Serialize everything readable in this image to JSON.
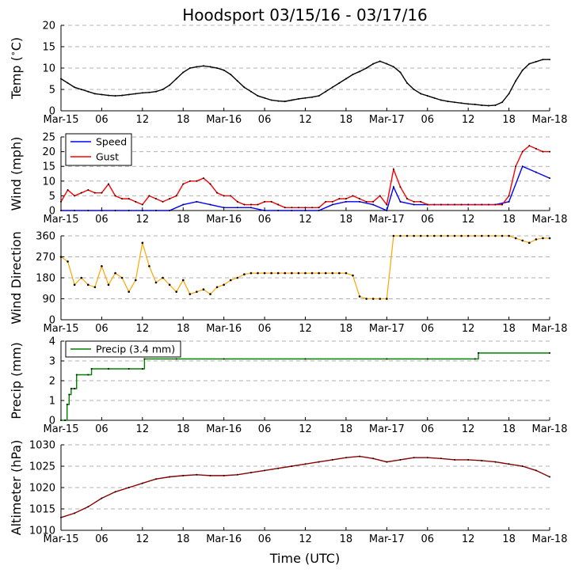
{
  "title": "Hoodsport 03/15/16 - 03/17/16",
  "xlabel": "Time (UTC)",
  "x_ticks": [
    "Mar-15",
    "06",
    "12",
    "18",
    "Mar-16",
    "06",
    "12",
    "18",
    "Mar-17",
    "06",
    "12",
    "18",
    "Mar-18"
  ],
  "colors": {
    "temp": "#000000",
    "speed": "#0000ff",
    "gust": "#ff0000",
    "direction": "#ffa500",
    "precip": "#008000",
    "altimeter": "#8b0000",
    "grid": "#b0b0b0"
  },
  "chart_data": [
    {
      "type": "line",
      "ylabel": "Temp ($^\\circ$C)",
      "ylim": [
        0,
        20
      ],
      "yticks": [
        "0",
        "5",
        "10",
        "15",
        "20"
      ],
      "grid": "horizontal dashed",
      "series": [
        {
          "key": "temp",
          "color": "#000000",
          "x": [
            0,
            1,
            2,
            3,
            4,
            5,
            6,
            7,
            8,
            9,
            10,
            11,
            12,
            13,
            14,
            15,
            16,
            17,
            18,
            19,
            20,
            21,
            22,
            23,
            24,
            25,
            26,
            27,
            28,
            29,
            30,
            31,
            32,
            33,
            34,
            35,
            36,
            37,
            38,
            39,
            40,
            41,
            42,
            43,
            44,
            45,
            46,
            47,
            48,
            49,
            50,
            51,
            52,
            53,
            54,
            55,
            56,
            57,
            58,
            59,
            60,
            61,
            62,
            63,
            64,
            65,
            66,
            67,
            68,
            69,
            70,
            71,
            72
          ],
          "y": [
            7.5,
            6.5,
            5.5,
            5,
            4.5,
            4,
            3.8,
            3.6,
            3.5,
            3.6,
            3.8,
            4,
            4.2,
            4.3,
            4.5,
            5,
            6,
            7.5,
            9,
            10,
            10.3,
            10.5,
            10.3,
            10,
            9.5,
            8.5,
            7,
            5.5,
            4.5,
            3.5,
            3,
            2.5,
            2.3,
            2.2,
            2.5,
            2.8,
            3,
            3.2,
            3.5,
            4.5,
            5.5,
            6.5,
            7.5,
            8.5,
            9.2,
            10,
            11,
            11.6,
            11,
            10.3,
            9,
            6.5,
            5,
            4,
            3.5,
            3,
            2.5,
            2.2,
            2,
            1.8,
            1.6,
            1.5,
            1.3,
            1.2,
            1.3,
            2,
            4,
            7,
            9.5,
            11,
            11.5,
            12,
            12
          ]
        }
      ]
    },
    {
      "type": "line",
      "ylabel": "Wind (mph)",
      "ylim": [
        0,
        25
      ],
      "yticks": [
        "0",
        "5",
        "10",
        "15",
        "20",
        "25"
      ],
      "legend": [
        "Speed",
        "Gust"
      ],
      "legend_position": "upper-left",
      "grid": "horizontal dashed",
      "series": [
        {
          "name": "Speed",
          "key": "speed",
          "color": "#0000ff",
          "x": [
            0,
            2,
            4,
            6,
            8,
            10,
            12,
            14,
            16,
            18,
            20,
            22,
            24,
            26,
            28,
            30,
            32,
            34,
            36,
            38,
            40,
            42,
            44,
            46,
            48,
            49,
            50,
            52,
            54,
            56,
            58,
            60,
            62,
            64,
            66,
            68,
            70,
            72
          ],
          "y": [
            0,
            0,
            0,
            0,
            0,
            0,
            0,
            0,
            0,
            2,
            3,
            2,
            1,
            1,
            1,
            0,
            0,
            0,
            0,
            0,
            2,
            3,
            3,
            2,
            0,
            8,
            3,
            2,
            2,
            2,
            2,
            2,
            2,
            2,
            3,
            15,
            13,
            11
          ]
        },
        {
          "name": "Gust",
          "key": "gust",
          "color": "#ff0000",
          "x": [
            0,
            1,
            2,
            3,
            4,
            5,
            6,
            7,
            8,
            9,
            10,
            11,
            12,
            13,
            14,
            15,
            16,
            17,
            18,
            19,
            20,
            21,
            22,
            23,
            24,
            25,
            26,
            27,
            28,
            29,
            30,
            31,
            32,
            33,
            34,
            35,
            36,
            37,
            38,
            39,
            40,
            41,
            42,
            43,
            44,
            45,
            46,
            47,
            48,
            49,
            50,
            51,
            52,
            53,
            54,
            55,
            56,
            57,
            58,
            59,
            60,
            61,
            62,
            63,
            64,
            65,
            66,
            67,
            68,
            69,
            70,
            71,
            72
          ],
          "y": [
            3,
            7,
            5,
            6,
            7,
            6,
            6,
            9,
            5,
            4,
            4,
            3,
            2,
            5,
            4,
            3,
            4,
            5,
            9,
            10,
            10,
            11,
            9,
            6,
            5,
            5,
            3,
            2,
            2,
            2,
            3,
            3,
            2,
            1,
            1,
            1,
            1,
            1,
            1,
            3,
            3,
            4,
            4,
            5,
            4,
            3,
            3,
            5,
            2,
            14,
            8,
            4,
            3,
            3,
            2,
            2,
            2,
            2,
            2,
            2,
            2,
            2,
            2,
            2,
            2,
            2,
            5,
            15,
            20,
            22,
            21,
            20,
            20
          ]
        }
      ]
    },
    {
      "type": "scatter",
      "ylabel": "Wind Direction",
      "ylim": [
        0,
        360
      ],
      "yticks": [
        "0",
        "90",
        "180",
        "270",
        "360"
      ],
      "grid": "horizontal dashed",
      "series": [
        {
          "key": "direction",
          "color": "#ffa500",
          "x": [
            0,
            1,
            2,
            3,
            4,
            5,
            6,
            7,
            8,
            9,
            10,
            11,
            12,
            13,
            14,
            15,
            16,
            17,
            18,
            19,
            20,
            21,
            22,
            23,
            24,
            25,
            26,
            27,
            28,
            29,
            30,
            31,
            32,
            33,
            34,
            35,
            36,
            37,
            38,
            39,
            40,
            41,
            42,
            43,
            44,
            45,
            46,
            47,
            48,
            49,
            50,
            51,
            52,
            53,
            54,
            55,
            56,
            57,
            58,
            59,
            60,
            61,
            62,
            63,
            64,
            65,
            66,
            67,
            68,
            69,
            70,
            71,
            72
          ],
          "y": [
            270,
            250,
            150,
            180,
            150,
            140,
            230,
            150,
            200,
            180,
            120,
            170,
            330,
            230,
            160,
            180,
            150,
            120,
            170,
            110,
            120,
            130,
            110,
            140,
            150,
            170,
            180,
            195,
            200,
            200,
            200,
            200,
            200,
            200,
            200,
            200,
            200,
            200,
            200,
            200,
            200,
            200,
            200,
            190,
            100,
            90,
            90,
            90,
            90,
            360,
            360,
            360,
            360,
            360,
            360,
            360,
            360,
            360,
            360,
            360,
            360,
            360,
            360,
            360,
            360,
            360,
            360,
            350,
            340,
            330,
            345,
            350,
            350
          ]
        }
      ]
    },
    {
      "type": "line",
      "ylabel": "Precip (mm)",
      "ylim": [
        0,
        4
      ],
      "yticks": [
        "0",
        "1",
        "2",
        "3",
        "4"
      ],
      "legend": [
        "Precip (3.4 mm)"
      ],
      "legend_position": "upper-left",
      "grid": "horizontal dashed",
      "series": [
        {
          "name": "Precip (3.4 mm)",
          "key": "precip",
          "color": "#008000",
          "x": [
            0,
            0.6,
            0.9,
            1.2,
            1.5,
            2,
            2.3,
            4,
            4.5,
            7,
            10,
            12,
            12.3,
            17,
            24,
            36,
            48,
            54,
            61,
            61.5,
            72
          ],
          "y": [
            0,
            0,
            0.8,
            1.3,
            1.6,
            1.6,
            2.3,
            2.3,
            2.6,
            2.6,
            2.6,
            2.6,
            3.1,
            3.1,
            3.1,
            3.1,
            3.1,
            3.1,
            3.1,
            3.4,
            3.4
          ]
        }
      ]
    },
    {
      "type": "line",
      "ylabel": "Altimeter (hPa)",
      "ylim": [
        1010,
        1030
      ],
      "yticks": [
        "1010",
        "1015",
        "1020",
        "1025",
        "1030"
      ],
      "grid": "horizontal dashed",
      "series": [
        {
          "key": "altimeter",
          "color": "#8b0000",
          "x": [
            0,
            2,
            4,
            6,
            8,
            10,
            12,
            14,
            16,
            18,
            20,
            22,
            24,
            26,
            28,
            30,
            32,
            34,
            36,
            38,
            40,
            42,
            44,
            46,
            48,
            50,
            52,
            54,
            56,
            58,
            60,
            62,
            64,
            66,
            68,
            70,
            72
          ],
          "y": [
            1013,
            1014,
            1015.5,
            1017.5,
            1019,
            1020,
            1021,
            1022,
            1022.5,
            1022.8,
            1023,
            1022.8,
            1022.8,
            1023,
            1023.5,
            1024,
            1024.5,
            1025,
            1025.5,
            1026,
            1026.5,
            1027,
            1027.3,
            1026.8,
            1026,
            1026.5,
            1027,
            1027,
            1026.8,
            1026.5,
            1026.5,
            1026.3,
            1026,
            1025.5,
            1025,
            1024,
            1022.5
          ]
        }
      ]
    }
  ]
}
